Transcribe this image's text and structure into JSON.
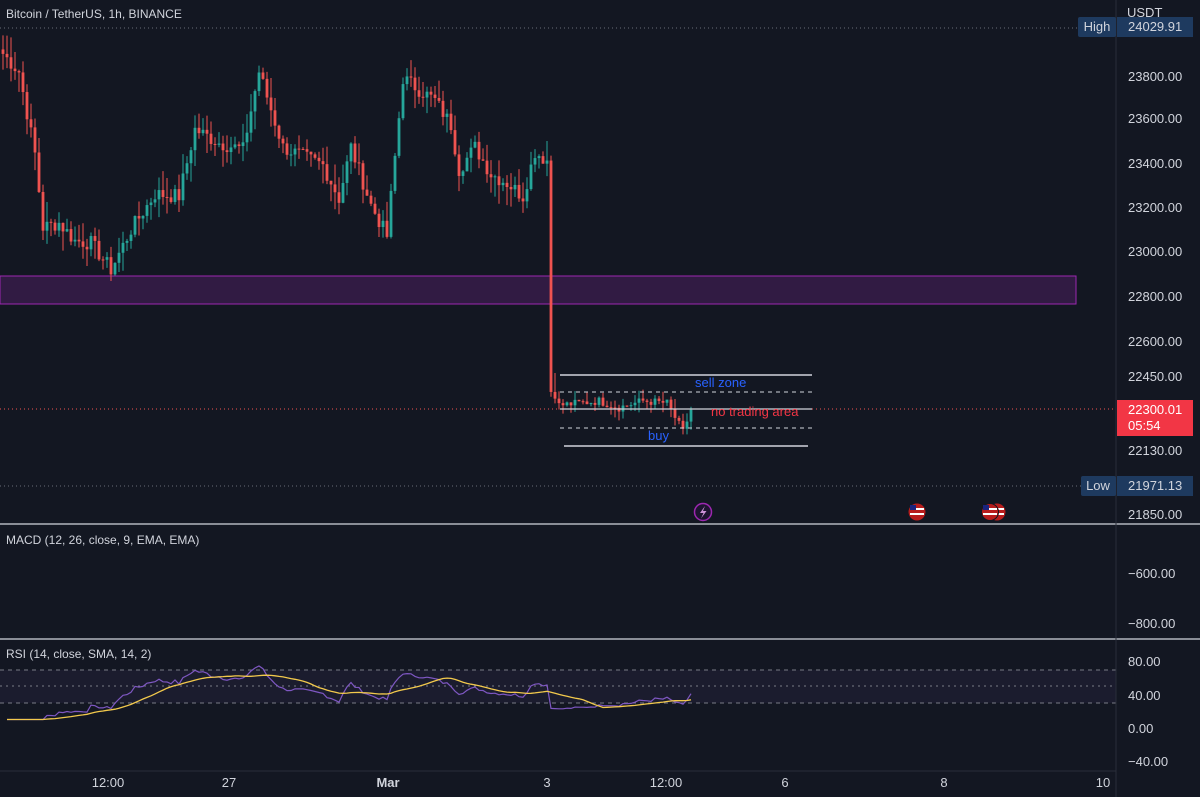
{
  "header": {
    "symbol_title": "Bitcoin / TetherUS, 1h, BINANCE",
    "currency": "USDT"
  },
  "colors": {
    "background": "#131722",
    "up": "#26a69a",
    "down": "#ef5350",
    "zone_fill": "#4a1f5e",
    "zone_border": "#9c27b0",
    "macd_line": "#2962ff",
    "rsi_line": "#7e57c2",
    "rsi_ma": "#f2c94c",
    "label_blue": "#2962ff",
    "label_red": "#f23645"
  },
  "price_axis": {
    "ticks": [
      "23800.00",
      "23600.00",
      "23400.00",
      "23200.00",
      "23000.00",
      "22800.00",
      "22600.00",
      "22450.00",
      "22130.00",
      "21850.00"
    ],
    "high_label": "High",
    "high_value": "24029.91",
    "low_label": "Low",
    "low_value": "21971.13",
    "current_price": "22300.01",
    "countdown": "05:54"
  },
  "time_axis": {
    "ticks": [
      "12:00",
      "27",
      "Mar",
      "3",
      "12:00",
      "6",
      "8",
      "10"
    ]
  },
  "annotations": {
    "sell_zone": "sell zone",
    "no_trading": "no trading area",
    "buy": "buy"
  },
  "macd": {
    "title": "MACD (12, 26, close, 9, EMA, EMA)",
    "ticks": [
      "−600.00",
      "−800.00"
    ]
  },
  "rsi": {
    "title": "RSI (14, close, SMA, 14, 2)",
    "ticks": [
      "80.00",
      "40.00",
      "0.00",
      "−40.00"
    ]
  },
  "event_icons": [
    "lightning-event-icon",
    "us-flag-event-icon",
    "us-flag-event-icon",
    "us-flag-event-icon"
  ],
  "chart_data": [
    {
      "type": "candlestick",
      "title": "Bitcoin / TetherUS, 1h, BINANCE",
      "y_unit": "USDT",
      "ylim": [
        21800,
        24080
      ],
      "x_ticks": [
        "12:00",
        "27",
        "Mar",
        "3",
        "12:00",
        "6",
        "8",
        "10"
      ],
      "anchors": [
        {
          "hour": 0,
          "price": 23900
        },
        {
          "hour": 4,
          "price": 23820
        },
        {
          "hour": 8,
          "price": 23450
        },
        {
          "hour": 10,
          "price": 23120
        },
        {
          "hour": 14,
          "price": 23140
        },
        {
          "hour": 18,
          "price": 23060
        },
        {
          "hour": 22,
          "price": 23050
        },
        {
          "hour": 27,
          "price": 22930
        },
        {
          "hour": 32,
          "price": 23110
        },
        {
          "hour": 38,
          "price": 23270
        },
        {
          "hour": 44,
          "price": 23260
        },
        {
          "hour": 48,
          "price": 23560
        },
        {
          "hour": 54,
          "price": 23500
        },
        {
          "hour": 60,
          "price": 23470
        },
        {
          "hour": 64,
          "price": 23820
        },
        {
          "hour": 70,
          "price": 23480
        },
        {
          "hour": 76,
          "price": 23430
        },
        {
          "hour": 80,
          "price": 23400
        },
        {
          "hour": 84,
          "price": 23250
        },
        {
          "hour": 87,
          "price": 23480
        },
        {
          "hour": 92,
          "price": 23220
        },
        {
          "hour": 96,
          "price": 23080
        },
        {
          "hour": 100,
          "price": 23790
        },
        {
          "hour": 104,
          "price": 23740
        },
        {
          "hour": 108,
          "price": 23690
        },
        {
          "hour": 112,
          "price": 23580
        },
        {
          "hour": 114,
          "price": 23380
        },
        {
          "hour": 118,
          "price": 23480
        },
        {
          "hour": 122,
          "price": 23360
        },
        {
          "hour": 126,
          "price": 23320
        },
        {
          "hour": 130,
          "price": 23260
        },
        {
          "hour": 133,
          "price": 23460
        },
        {
          "hour": 136,
          "price": 23420
        },
        {
          "hour": 137,
          "price": 22380
        },
        {
          "hour": 139,
          "price": 22320
        },
        {
          "hour": 144,
          "price": 22330
        },
        {
          "hour": 149,
          "price": 22340
        },
        {
          "hour": 154,
          "price": 22310
        },
        {
          "hour": 160,
          "price": 22340
        },
        {
          "hour": 166,
          "price": 22330
        },
        {
          "hour": 170,
          "price": 22200
        },
        {
          "hour": 172,
          "price": 22300
        }
      ],
      "high": 24029.91,
      "low": 21971.13,
      "current_price": 22300.01,
      "zones": [
        {
          "name": "resistance",
          "from": 22770,
          "to": 22900
        },
        {
          "name": "range",
          "from": 22188,
          "to": 22460
        }
      ],
      "levels": {
        "sell_top": 22458,
        "sell_mid": 22405,
        "mid": 22330,
        "buy_mid": 22243,
        "buy_bottom": 22188
      }
    },
    {
      "type": "line",
      "title": "MACD (12, 26, close, 9, EMA, EMA)",
      "y_ticks": [
        -600,
        -800
      ],
      "series": []
    },
    {
      "type": "line",
      "title": "RSI (14, close, SMA, 14, 2)",
      "ylim": [
        -40,
        80
      ],
      "bands": [
        70,
        50,
        30
      ],
      "y_ticks": [
        80,
        40,
        0,
        -40
      ]
    }
  ]
}
